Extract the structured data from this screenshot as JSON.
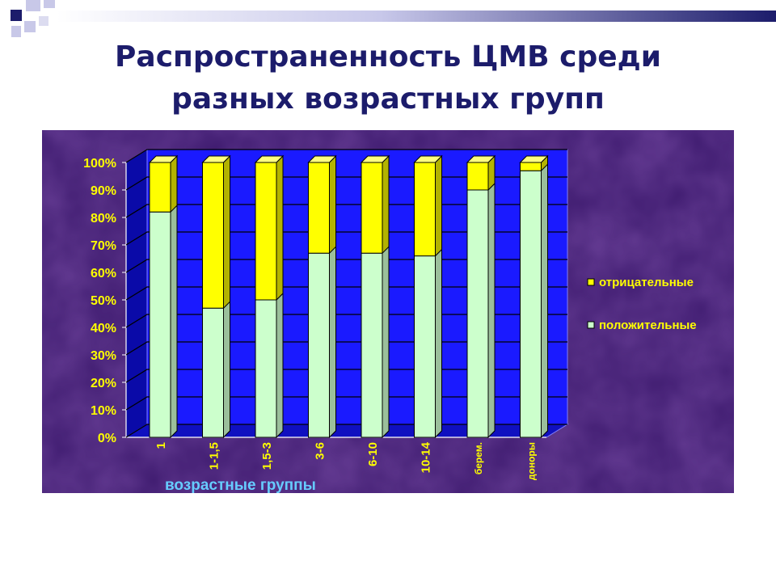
{
  "slide": {
    "title_line1": "Распространенность ЦМВ среди",
    "title_line2": "разных возрастных групп"
  },
  "chart_data": {
    "type": "bar",
    "stacked": true,
    "percent": true,
    "categories": [
      "1",
      "1-1,5",
      "1,5-3",
      "3-6",
      "6-10",
      "10-14",
      "берем.",
      "доноры"
    ],
    "series": [
      {
        "name": "положительные",
        "color": "#ccffcc",
        "values": [
          82,
          47,
          50,
          67,
          67,
          66,
          90,
          97
        ]
      },
      {
        "name": "отрицательные",
        "color": "#ffff00",
        "values": [
          18,
          53,
          50,
          33,
          33,
          34,
          10,
          3
        ]
      }
    ],
    "xlabel": "возрастные группы",
    "ylim": [
      0,
      100
    ],
    "yticks": [
      "0%",
      "10%",
      "20%",
      "30%",
      "40%",
      "50%",
      "60%",
      "70%",
      "80%",
      "90%",
      "100%"
    ],
    "grid": true,
    "legend": "right",
    "colors": {
      "plot_back": "#1a1aff",
      "background": "#3d1a6e",
      "label_text": "#ffff00",
      "xlabel_text": "#66ccff"
    }
  }
}
